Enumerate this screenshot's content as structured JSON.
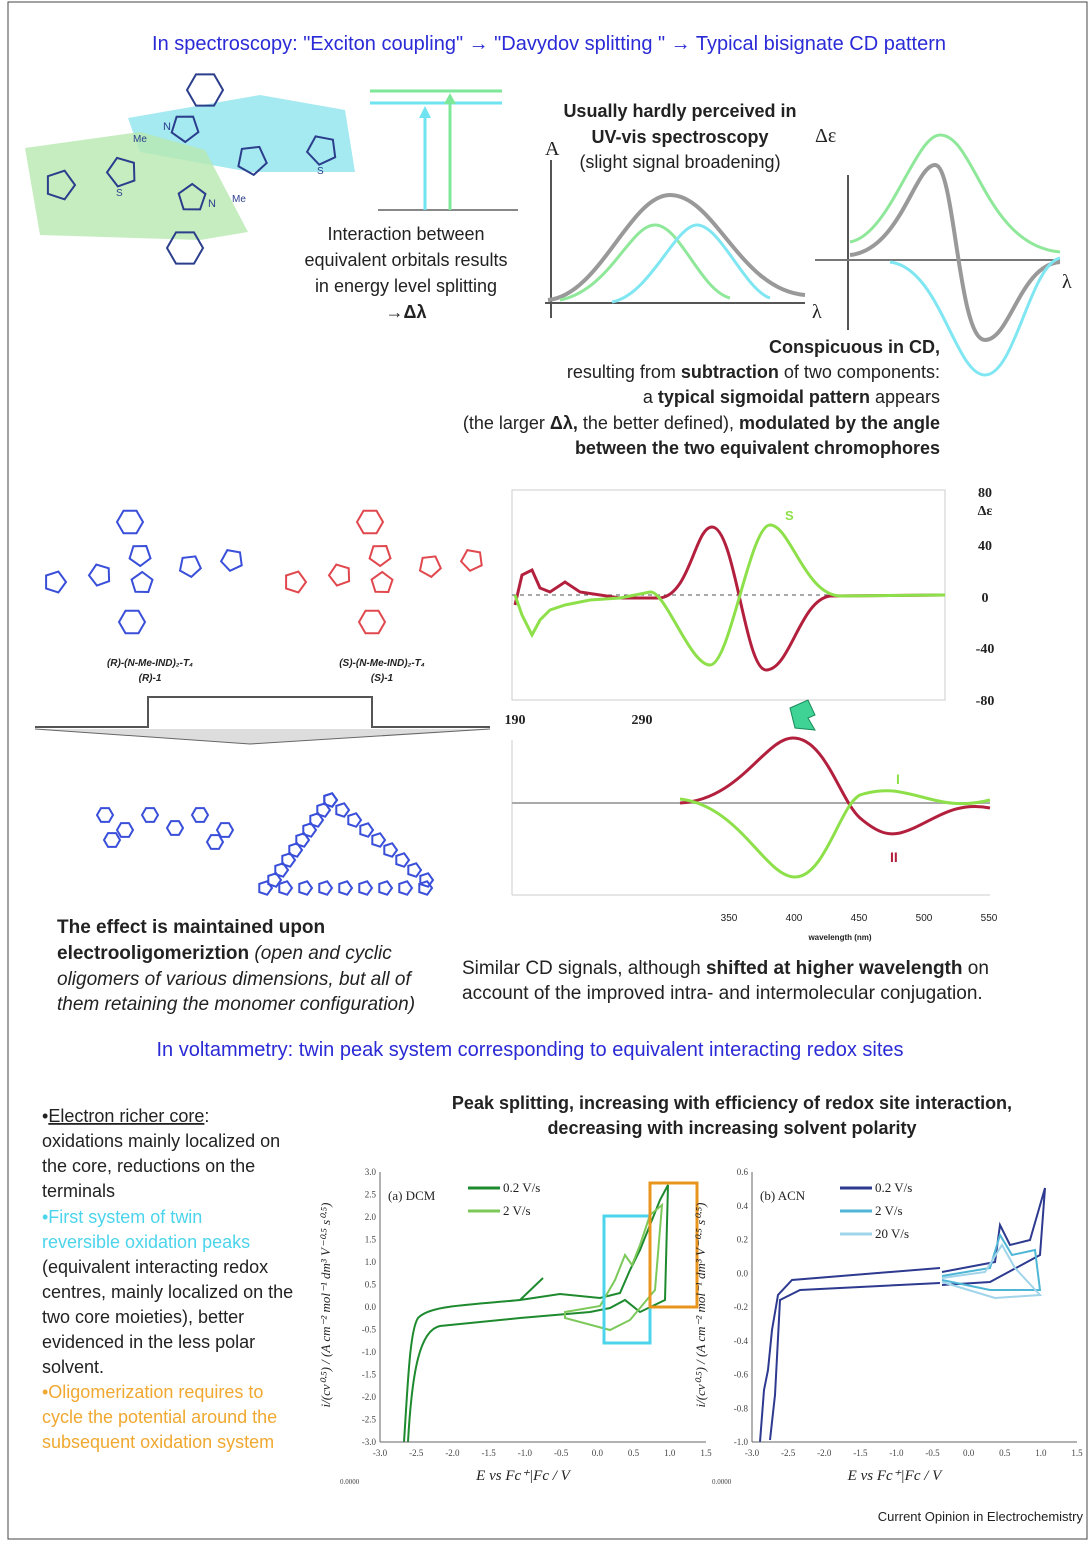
{
  "top_title": "In spectroscopy: \"Exciton coupling\" → \"Davydov splitting \" → Typical bisignate CD pattern",
  "atoms": {
    "methyl": "Me",
    "nitrogen": "N",
    "sulfur": "S"
  },
  "energy": {
    "caption": [
      "Interaction between",
      "equivalent orbitals results",
      "in energy level splitting"
    ],
    "delta": "→Δλ"
  },
  "uv": {
    "title": [
      "Usually hardly perceived in",
      "UV-vis spectroscopy"
    ],
    "note": "(slight signal broadening)",
    "y_label": "A",
    "x_label": "λ"
  },
  "cd": {
    "y_label": "Δε",
    "x_label": "λ"
  },
  "cd_caption": [
    [
      "Conspicuous in CD,"
    ],
    [
      "resulting from ",
      "subtraction",
      " of two components:"
    ],
    [
      "a ",
      "typical sigmoidal pattern",
      " appears"
    ],
    [
      "(the larger ",
      "Δλ,",
      " the better defined), ",
      "modulated by the angle"
    ],
    [
      "between the two equivalent chromophores"
    ]
  ],
  "compounds": [
    {
      "name": "(R)-(N-Me-IND)₂-T₄",
      "code": "(R)-1"
    },
    {
      "name": "(S)-(N-Me-IND)₂-T₄",
      "code": "(S)-1"
    }
  ],
  "effect_caption": [
    [
      "The effect is maintained upon"
    ],
    [
      "electrooligomeriztion",
      " (open and cyclic"
    ],
    [
      "oligomers of various dimensions, but all of"
    ],
    [
      "them retaining the monomer configuration)"
    ]
  ],
  "cd_upper": {
    "yticks": [
      "80",
      "40",
      "0",
      "-40",
      "-80"
    ],
    "y_label": "Δε",
    "xticks": [
      "190",
      "290"
    ],
    "series_label": "S"
  },
  "cd_lower": {
    "xticks": [
      "350",
      "400",
      "450",
      "500",
      "550"
    ],
    "x_label": "wavelength (nm)",
    "labels": [
      "I",
      "II"
    ]
  },
  "similar_caption": [
    [
      "Similar CD signals, although ",
      "shifted at higher wavelength",
      " on"
    ],
    [
      "account of the improved intra- and intermolecular conjugation."
    ]
  ],
  "volt_title": "In voltammetry: twin peak system corresponding to equivalent interacting redox sites",
  "left_text": {
    "bullet": "•",
    "core": "Electron richer core",
    "colon": ":",
    "core_lines": [
      "oxidations mainly localized on",
      "the core, reductions on the",
      "terminals"
    ],
    "first_system": [
      "•First system of twin",
      "reversible oxidation peaks"
    ],
    "first_lines": [
      "(equivalent interacting redox",
      "centres, mainly localized on the",
      "two core moieties), better",
      "evidenced in the less polar",
      "solvent."
    ],
    "oligo": [
      "•Oligomerization requires to",
      "cycle the potential around the",
      "subsequent oxidation system"
    ]
  },
  "peak_title": [
    "Peak splitting, increasing with efficiency of redox site interaction,",
    "decreasing with increasing solvent polarity"
  ],
  "cv": [
    {
      "panel": "(a) DCM",
      "legend": [
        "0.2 V/s",
        "2 V/s"
      ],
      "yticks": [
        "3.0",
        "2.5",
        "2.0",
        "1.5",
        "1.0",
        "0.5",
        "0.0",
        "-0.5",
        "-1.0",
        "-1.5",
        "-2.0",
        "-2.5",
        "-3.0"
      ],
      "xticks": [
        "-3.0",
        "-2.5",
        "-2.0",
        "-1.5",
        "-1.0",
        "-0.5",
        "0.0",
        "0.5",
        "1.0",
        "1.5"
      ],
      "y_label": "i/(cv⁰·⁵) / (A cm⁻² mol⁻¹ dm³ V⁻⁰·⁵ s⁰·⁵)",
      "x_label": "E vs Fc⁺|Fc / V",
      "corner": "0.0000"
    },
    {
      "panel": "(b) ACN",
      "legend": [
        "0.2 V/s",
        "2 V/s",
        "20 V/s"
      ],
      "yticks": [
        "0.6",
        "0.4",
        "0.2",
        "0.0",
        "-0.2",
        "-0.4",
        "-0.6",
        "-0.8",
        "-1.0"
      ],
      "xticks": [
        "-3.0",
        "-2.5",
        "-2.0",
        "-1.5",
        "-1.0",
        "-0.5",
        "0.0",
        "0.5",
        "1.0",
        "1.5"
      ],
      "y_label": "i/(cv⁰·⁵) / (A cm⁻² mol⁻¹ dm³ V⁻⁰·⁵ s⁰·⁵)",
      "x_label": "E vs Fc⁺|Fc / V",
      "corner": "0.0000"
    }
  ],
  "footer": "Current Opinion in Electrochemistry"
}
